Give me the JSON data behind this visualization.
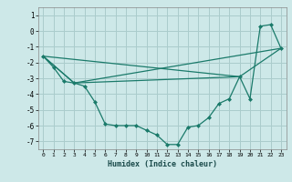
{
  "xlabel": "Humidex (Indice chaleur)",
  "bg_color": "#cde8e8",
  "grid_color": "#aacccc",
  "line_color": "#1a7a6a",
  "marker_color": "#1a7a6a",
  "xlim": [
    -0.5,
    23.5
  ],
  "ylim": [
    -7.5,
    1.5
  ],
  "yticks": [
    1,
    0,
    -1,
    -2,
    -3,
    -4,
    -5,
    -6,
    -7
  ],
  "xticks": [
    0,
    1,
    2,
    3,
    4,
    5,
    6,
    7,
    8,
    9,
    10,
    11,
    12,
    13,
    14,
    15,
    16,
    17,
    18,
    19,
    20,
    21,
    22,
    23
  ],
  "line1_x": [
    0,
    1,
    2,
    3,
    4,
    5,
    6,
    7,
    8,
    9,
    10,
    11,
    12,
    13,
    14,
    15,
    16,
    17,
    18,
    19,
    20,
    21,
    22,
    23
  ],
  "line1_y": [
    -1.6,
    -2.3,
    -3.2,
    -3.3,
    -3.5,
    -4.5,
    -5.9,
    -6.0,
    -6.0,
    -6.0,
    -6.3,
    -6.6,
    -7.2,
    -7.2,
    -6.1,
    -6.0,
    -5.5,
    -4.6,
    -4.3,
    -2.9,
    -4.3,
    0.3,
    0.4,
    -1.1
  ],
  "line2_x": [
    0,
    3,
    23
  ],
  "line2_y": [
    -1.6,
    -3.3,
    -1.1
  ],
  "line3_x": [
    0,
    3,
    19,
    23
  ],
  "line3_y": [
    -1.6,
    -3.3,
    -2.9,
    -1.1
  ],
  "line4_x": [
    0,
    19
  ],
  "line4_y": [
    -1.6,
    -2.9
  ]
}
